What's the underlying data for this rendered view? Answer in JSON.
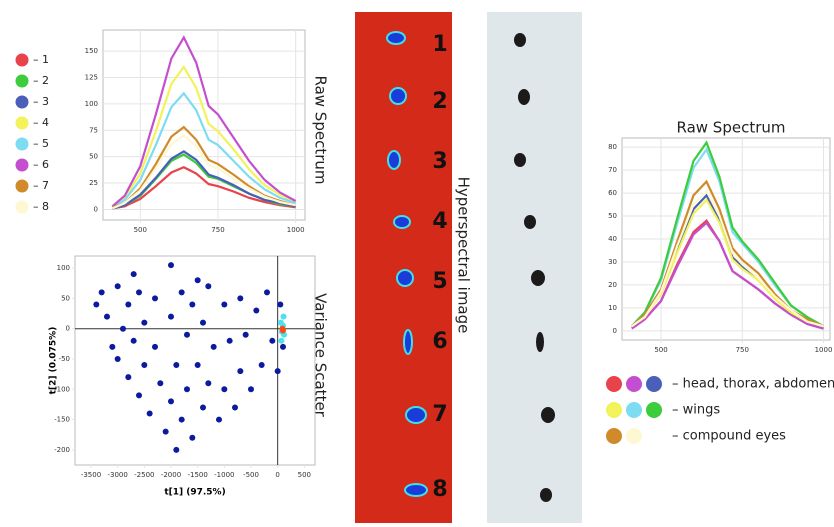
{
  "chart_data": [
    {
      "type": "line",
      "title": "Raw Spectrum",
      "x": [
        410,
        450,
        500,
        550,
        600,
        640,
        680,
        720,
        750,
        800,
        850,
        900,
        950,
        1000
      ],
      "xlim": [
        380,
        1030
      ],
      "xticks": [
        500,
        750,
        1000
      ],
      "ylim": [
        -10,
        170
      ],
      "yticks": [
        0,
        25,
        50,
        75,
        100,
        125,
        150
      ],
      "grid": true,
      "series": [
        {
          "name": "– 1",
          "color": "#e8434a",
          "values": [
            1,
            3,
            10,
            22,
            35,
            40,
            34,
            24,
            22,
            17,
            11,
            7,
            4,
            2
          ]
        },
        {
          "name": "– 2",
          "color": "#3ccc3c",
          "values": [
            1,
            4,
            13,
            29,
            46,
            52,
            44,
            31,
            29,
            22,
            15,
            9,
            5,
            3
          ]
        },
        {
          "name": "– 3",
          "color": "#4a5fb8",
          "values": [
            1,
            4,
            14,
            30,
            48,
            55,
            47,
            33,
            30,
            23,
            15,
            9,
            6,
            3
          ]
        },
        {
          "name": "– 4",
          "color": "#f2f25a",
          "values": [
            3,
            11,
            34,
            74,
            119,
            135,
            115,
            81,
            74,
            57,
            38,
            23,
            14,
            7
          ]
        },
        {
          "name": "– 5",
          "color": "#7ddcf2",
          "values": [
            2,
            9,
            28,
            61,
            97,
            110,
            94,
            66,
            61,
            46,
            31,
            19,
            11,
            6
          ]
        },
        {
          "name": "– 6",
          "color": "#c54ed0",
          "values": [
            3,
            13,
            41,
            90,
            143,
            163,
            139,
            98,
            90,
            68,
            46,
            28,
            16,
            8
          ]
        },
        {
          "name": "– 7",
          "color": "#d08a2a",
          "values": [
            2,
            6,
            20,
            43,
            69,
            78,
            66,
            47,
            43,
            33,
            22,
            13,
            8,
            4
          ]
        },
        {
          "name": "– 8",
          "color": "#fdf7d2",
          "values": [
            1,
            6,
            18,
            39,
            62,
            70,
            60,
            42,
            39,
            29,
            20,
            12,
            7,
            4
          ]
        }
      ]
    },
    {
      "type": "scatter",
      "title": "Variance Scatter",
      "x_label": "t[1] (97.5%)",
      "y_label": "t[2] (0.075%)",
      "xlim": [
        -3800,
        700
      ],
      "xticks": [
        -3500,
        -3000,
        -2500,
        -2000,
        -1500,
        -1000,
        -500,
        0,
        500
      ],
      "ylim": [
        -225,
        120
      ],
      "yticks": [
        -200,
        -150,
        -100,
        -50,
        0,
        50,
        100
      ],
      "zero_lines": true,
      "series": [
        {
          "color": "#0b1a9e",
          "x": [
            -3300,
            -3200,
            -3100,
            -3000,
            -3000,
            -2900,
            -2800,
            -2800,
            -2700,
            -2600,
            -2600,
            -2500,
            -2500,
            -2400,
            -2300,
            -2300,
            -2200,
            -2100,
            -2000,
            -2000,
            -1900,
            -1900,
            -1800,
            -1800,
            -1700,
            -1700,
            -1600,
            -1600,
            -1500,
            -1400,
            -1400,
            -1300,
            -1300,
            -1200,
            -1100,
            -1000,
            -1000,
            -900,
            -800,
            -700,
            -700,
            -600,
            -500,
            -400,
            -300,
            -200,
            -100,
            0,
            50,
            100,
            -2700,
            -2000,
            -1500,
            -3400
          ],
          "y": [
            60,
            20,
            -30,
            70,
            -50,
            0,
            40,
            -80,
            -20,
            60,
            -110,
            10,
            -60,
            -140,
            50,
            -30,
            -90,
            -170,
            20,
            -120,
            -200,
            -60,
            60,
            -150,
            -10,
            -100,
            40,
            -180,
            -60,
            10,
            -130,
            70,
            -90,
            -30,
            -150,
            40,
            -100,
            -20,
            -130,
            50,
            -70,
            -10,
            -100,
            30,
            -60,
            60,
            -20,
            -70,
            40,
            -30,
            90,
            105,
            80,
            40
          ]
        },
        {
          "color": "#4fe0f0",
          "x": [
            60,
            80,
            100,
            120,
            70,
            110
          ],
          "y": [
            10,
            -5,
            5,
            -10,
            -20,
            20
          ]
        },
        {
          "color": "#ff4a10",
          "x": [
            90,
            100
          ],
          "y": [
            0,
            -3
          ]
        }
      ]
    },
    {
      "type": "line",
      "title": "Raw Spectrum",
      "x": [
        410,
        450,
        500,
        550,
        600,
        640,
        680,
        720,
        750,
        800,
        850,
        900,
        950,
        1000
      ],
      "xlim": [
        380,
        1020
      ],
      "xticks": [
        500,
        750,
        1000
      ],
      "ylim": [
        -4,
        84
      ],
      "yticks": [
        0,
        10,
        20,
        30,
        40,
        50,
        60,
        70,
        80
      ],
      "grid": true,
      "series": [
        {
          "color": "#e8434a",
          "values": [
            1,
            5,
            13,
            29,
            43,
            48,
            39,
            26,
            23,
            18,
            12,
            7,
            3,
            1
          ]
        },
        {
          "color": "#c54ed0",
          "values": [
            1,
            5,
            13,
            28,
            42,
            47,
            39,
            26,
            23,
            18,
            12,
            7,
            3,
            1
          ]
        },
        {
          "color": "#4a5fb8",
          "values": [
            2,
            6,
            17,
            35,
            53,
            59,
            48,
            32,
            28,
            22,
            15,
            8,
            4,
            2
          ]
        },
        {
          "color": "#f2f25a",
          "values": [
            2,
            6,
            16,
            34,
            51,
            57,
            47,
            31,
            27,
            22,
            14,
            8,
            4,
            2
          ]
        },
        {
          "color": "#7ddcf2",
          "values": [
            2,
            8,
            22,
            47,
            71,
            79,
            65,
            43,
            38,
            30,
            20,
            11,
            6,
            2
          ]
        },
        {
          "color": "#3ccc3c",
          "values": [
            2,
            8,
            23,
            49,
            74,
            82,
            67,
            45,
            39,
            31,
            21,
            11,
            6,
            2
          ]
        },
        {
          "color": "#d08a2a",
          "values": [
            2,
            7,
            18,
            39,
            59,
            65,
            53,
            36,
            31,
            25,
            16,
            9,
            5,
            2
          ]
        },
        {
          "color": "#fdf7d2",
          "values": [
            2,
            6,
            17,
            37,
            55,
            61,
            50,
            34,
            29,
            23,
            15,
            9,
            4,
            2
          ]
        }
      ],
      "legend_groups": [
        {
          "label": "– head, thorax, abdomen",
          "colors": [
            "#e8434a",
            "#c54ed0",
            "#4a5fb8"
          ]
        },
        {
          "label": "– wings",
          "colors": [
            "#f2f25a",
            "#7ddcf2",
            "#3ccc3c"
          ]
        },
        {
          "label": "– compound eyes",
          "colors": [
            "#d08a2a",
            "#fdf7d2"
          ]
        }
      ]
    }
  ],
  "image_label": "Hyperspectral image",
  "image_numbers": [
    "1",
    "2",
    "3",
    "4",
    "5",
    "6",
    "7",
    "8"
  ]
}
